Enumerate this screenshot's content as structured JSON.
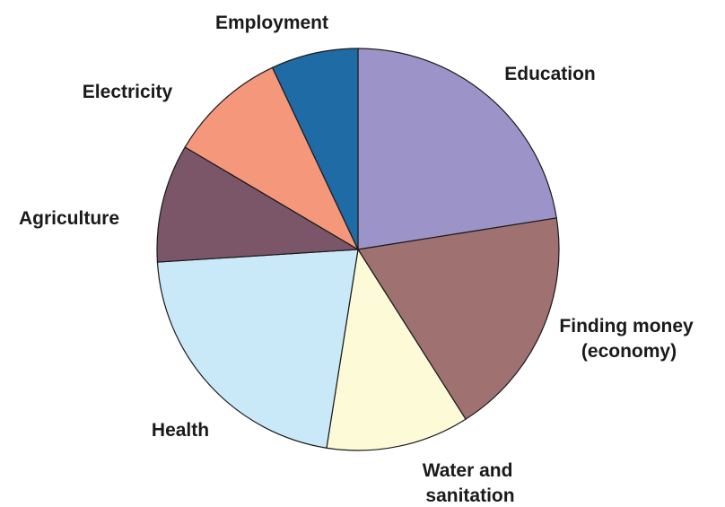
{
  "chart_data": {
    "type": "pie",
    "title": "",
    "slices": [
      {
        "label": "Education",
        "lines": [
          "Education"
        ],
        "value": 22.5,
        "color": "#9c94c8"
      },
      {
        "label": "Finding money (economy)",
        "lines": [
          "Finding money",
          "(economy)"
        ],
        "value": 18.5,
        "color": "#a07171"
      },
      {
        "label": "Water and sanitation",
        "lines": [
          "Water and",
          "sanitation"
        ],
        "value": 11.5,
        "color": "#fdfad8"
      },
      {
        "label": "Health",
        "lines": [
          "Health"
        ],
        "value": 21.5,
        "color": "#c9e9f8"
      },
      {
        "label": "Agriculture",
        "lines": [
          "Agriculture"
        ],
        "value": 9.5,
        "color": "#7b5568"
      },
      {
        "label": "Electricity",
        "lines": [
          "Electricity"
        ],
        "value": 9.5,
        "color": "#f4977a"
      },
      {
        "label": "Employment",
        "lines": [
          "Employment"
        ],
        "value": 7.0,
        "color": "#1f6ba5"
      }
    ],
    "legend": "none",
    "start": "top",
    "direction": "clockwise"
  }
}
